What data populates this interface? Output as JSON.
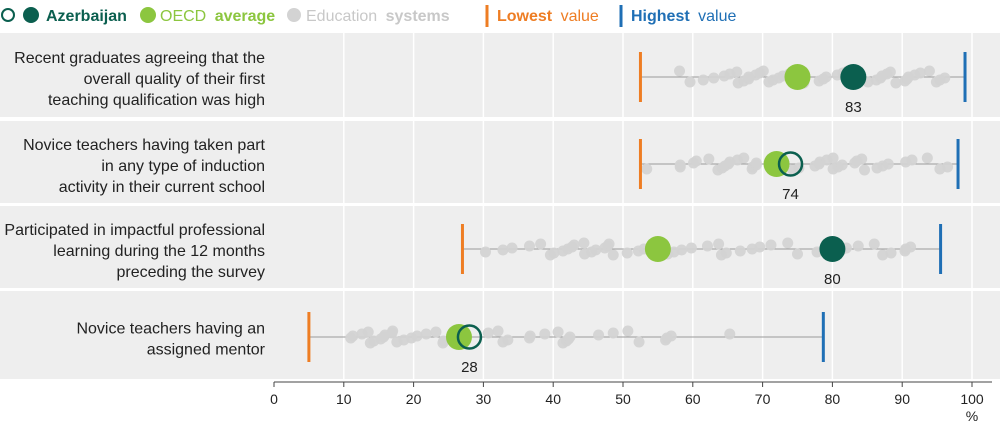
{
  "legend": {
    "azerbaijan_bold": "Azerbaijan",
    "oecd_label": "OECD",
    "oecd_bold": "average",
    "edu_label": "Education",
    "edu_bold": "systems",
    "lowest_bold": "Lowest",
    "lowest_rest": "value",
    "highest_bold": "Highest",
    "highest_rest": "value"
  },
  "colors": {
    "azerbaijan": "#0b5f4f",
    "oecd": "#8cc63f",
    "systems": "#d3d3d3",
    "lowest": "#ee7d23",
    "highest": "#1f6fb5",
    "range_line": "#9a9a9a",
    "row_band": "#eeeeee",
    "text": "#222222"
  },
  "chart_data": {
    "type": "scatter",
    "unit": "%",
    "xlim": [
      0,
      100
    ],
    "x_ticks": [
      0,
      10,
      20,
      30,
      40,
      50,
      60,
      70,
      80,
      90,
      100
    ],
    "rows": [
      {
        "label_lines": [
          "Recent graduates agreeing that the",
          "overall quality of their first",
          "teaching qualification was high"
        ],
        "lowest": 52.5,
        "highest": 99.0,
        "oecd": 75.0,
        "azerbaijan": 83.0,
        "azerbaijan_label": "83",
        "azerbaijan_filled": true,
        "systems": [
          58.1,
          59.6,
          61.5,
          63.0,
          64.5,
          65.3,
          66.3,
          66.5,
          67.3,
          68.0,
          68.0,
          69.0,
          69.6,
          70.1,
          70.9,
          71.5,
          72.3,
          72.9,
          73.8,
          74.7,
          75.9,
          78.1,
          78.7,
          79.1,
          80.7,
          81.5,
          82.2,
          85.1,
          86.3,
          86.9,
          87.1,
          87.8,
          88.3,
          89.1,
          90.4,
          90.7,
          90.9,
          91.8,
          92.6,
          93.9,
          94.9,
          95.4,
          96.1
        ]
      },
      {
        "label_lines": [
          "Novice teachers having taken part",
          "in any type of induction",
          "activity in their current school"
        ],
        "lowest": 52.5,
        "highest": 98.0,
        "oecd": 72.0,
        "azerbaijan": 74.0,
        "azerbaijan_label": "74",
        "azerbaijan_filled": false,
        "systems": [
          53.4,
          58.2,
          58.2,
          60.1,
          60.5,
          62.3,
          63.6,
          64.2,
          64.6,
          65.1,
          65.3,
          66.4,
          67.3,
          68.5,
          68.6,
          69.1,
          69.1,
          71.9,
          72.2,
          74.3,
          75.2,
          77.5,
          78.1,
          78.2,
          79.2,
          80.1,
          80.1,
          80.8,
          81.4,
          83.2,
          83.5,
          84.2,
          84.6,
          86.4,
          87.2,
          88.0,
          90.5,
          91.4,
          93.6,
          95.4,
          96.5
        ]
      },
      {
        "label_lines": [
          "Participated in impactful professional",
          "learning during the 12 months",
          "preceding the survey"
        ],
        "lowest": 27.0,
        "highest": 95.5,
        "oecd": 55.0,
        "azerbaijan": 80.0,
        "azerbaijan_label": "80",
        "azerbaijan_filled": true,
        "systems": [
          30.3,
          32.8,
          34.1,
          36.6,
          38.2,
          39.6,
          40.1,
          41.4,
          42.1,
          42.7,
          43.0,
          44.4,
          44.5,
          45.5,
          46.1,
          47.4,
          47.8,
          48.0,
          48.6,
          50.6,
          52.2,
          53.0,
          54.5,
          55.4,
          55.6,
          56.4,
          57.3,
          58.4,
          59.8,
          62.1,
          63.7,
          64.1,
          64.8,
          66.8,
          68.5,
          69.6,
          71.2,
          73.6,
          75.0,
          77.8,
          81.3,
          82.0,
          83.7,
          86.0,
          87.2,
          88.4,
          90.4,
          90.5,
          91.2
        ]
      },
      {
        "label_lines": [
          "Novice teachers having an",
          "assigned mentor"
        ],
        "lowest": 5.0,
        "highest": 78.7,
        "oecd": 26.5,
        "azerbaijan": 28.0,
        "azerbaijan_label": "28",
        "azerbaijan_filled": false,
        "systems": [
          11.0,
          11.3,
          12.6,
          13.5,
          13.8,
          14.3,
          15.3,
          15.7,
          15.9,
          16.9,
          17.0,
          17.6,
          18.6,
          19.7,
          20.5,
          21.8,
          23.2,
          24.2,
          24.3,
          25.7,
          26.4,
          27.1,
          30.7,
          32.1,
          32.8,
          33.5,
          36.6,
          36.7,
          38.8,
          40.7,
          41.4,
          41.9,
          42.2,
          42.4,
          46.5,
          48.6,
          50.7,
          52.3,
          56.1,
          56.3,
          56.9,
          65.3
        ]
      }
    ]
  }
}
